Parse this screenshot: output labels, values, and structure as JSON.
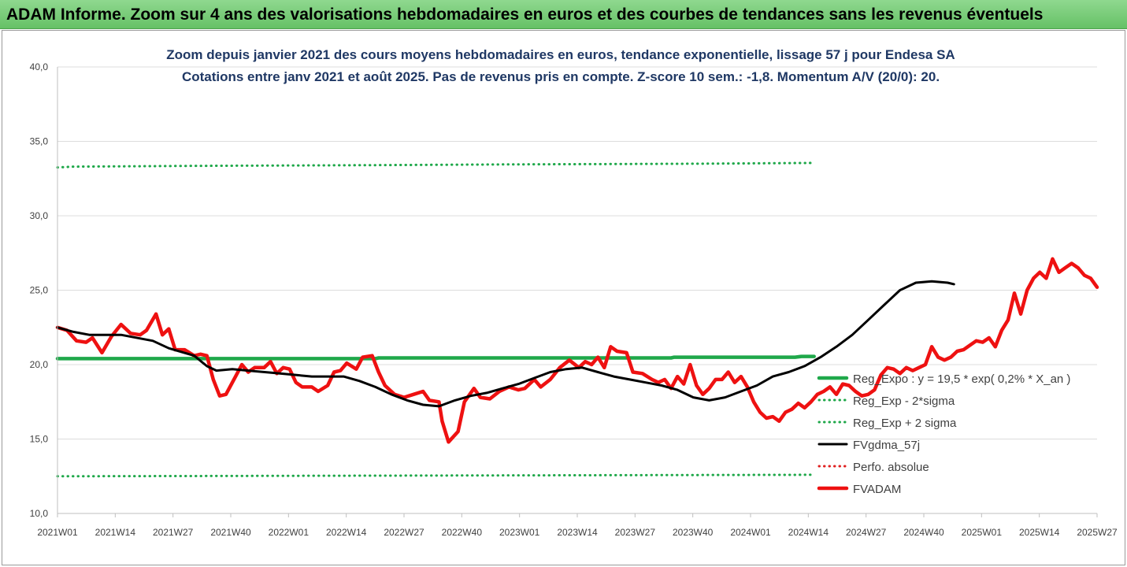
{
  "banner": {
    "title": "ADAM Informe. Zoom sur 4 ans des valorisations hebdomadaires en euros et des courbes de tendances sans les revenus éventuels"
  },
  "chart_data": {
    "type": "line",
    "title": "Zoom depuis janvier 2021 des cours moyens hebdomadaires en euros, tendance exponentielle, lissage 57 j pour Endesa SA",
    "subtitle": "Cotations entre janv 2021 et août 2025. Pas de revenus pris en compte. Z-score 10 sem.: -1,8. Momentum A/V (20/0): 20.",
    "ylim": [
      10,
      40
    ],
    "y_ticks": [
      "10,0",
      "15,0",
      "20,0",
      "25,0",
      "30,0",
      "35,0",
      "40,0"
    ],
    "x_ticks": [
      "2021W01",
      "2021W14",
      "2021W27",
      "2021W40",
      "2022W01",
      "2022W14",
      "2022W27",
      "2022W40",
      "2023W01",
      "2023W14",
      "2023W27",
      "2023W40",
      "2024W01",
      "2024W14",
      "2024W27",
      "2024W40",
      "2025W01",
      "2025W14",
      "2025W27"
    ],
    "x_range_weeks": [
      0,
      238
    ],
    "legend_position": "bottom-right",
    "series": [
      {
        "name": "Reg_Expo : y = 19,5 * exp( 0,2% *  X_an )",
        "color": "#1fa84a",
        "style": "solid-thick",
        "points": [
          [
            0,
            20.4
          ],
          [
            100,
            20.4
          ],
          [
            101,
            20.45
          ],
          [
            193,
            20.45
          ],
          [
            194,
            20.5
          ],
          [
            232,
            20.5
          ],
          [
            234,
            20.55
          ],
          [
            238,
            20.55
          ]
        ]
      },
      {
        "name": "Reg_Exp - 2*sigma",
        "color": "#1fa84a",
        "style": "dotted",
        "points": [
          [
            0,
            12.5
          ],
          [
            238,
            12.6
          ]
        ]
      },
      {
        "name": "Reg_Exp + 2 sigma",
        "color": "#1fa84a",
        "style": "dotted",
        "points": [
          [
            0,
            33.25
          ],
          [
            5,
            33.3
          ],
          [
            40,
            33.35
          ],
          [
            100,
            33.4
          ],
          [
            140,
            33.45
          ],
          [
            200,
            33.5
          ],
          [
            238,
            33.55
          ]
        ]
      },
      {
        "name": "FVgdma_57j",
        "color": "#000000",
        "style": "solid",
        "points": [
          [
            0,
            22.5
          ],
          [
            5,
            22.2
          ],
          [
            10,
            22.0
          ],
          [
            20,
            22.0
          ],
          [
            30,
            21.6
          ],
          [
            35,
            21.1
          ],
          [
            43,
            20.6
          ],
          [
            47,
            19.9
          ],
          [
            50,
            19.6
          ],
          [
            55,
            19.7
          ],
          [
            60,
            19.6
          ],
          [
            70,
            19.4
          ],
          [
            80,
            19.2
          ],
          [
            90,
            19.2
          ],
          [
            95,
            18.9
          ],
          [
            100,
            18.5
          ],
          [
            105,
            18.0
          ],
          [
            110,
            17.6
          ],
          [
            115,
            17.3
          ],
          [
            120,
            17.2
          ],
          [
            125,
            17.6
          ],
          [
            130,
            17.9
          ],
          [
            135,
            18.1
          ],
          [
            140,
            18.4
          ],
          [
            145,
            18.7
          ],
          [
            150,
            19.1
          ],
          [
            155,
            19.5
          ],
          [
            160,
            19.7
          ],
          [
            165,
            19.8
          ],
          [
            170,
            19.5
          ],
          [
            175,
            19.2
          ],
          [
            180,
            19.0
          ],
          [
            185,
            18.8
          ],
          [
            190,
            18.6
          ],
          [
            195,
            18.3
          ],
          [
            200,
            17.8
          ],
          [
            205,
            17.6
          ],
          [
            210,
            17.8
          ],
          [
            215,
            18.2
          ],
          [
            220,
            18.6
          ],
          [
            225,
            19.2
          ],
          [
            230,
            19.5
          ],
          [
            235,
            19.9
          ],
          [
            240,
            20.5
          ],
          [
            245,
            21.2
          ],
          [
            250,
            22.0
          ],
          [
            255,
            23.0
          ],
          [
            260,
            24.0
          ],
          [
            265,
            25.0
          ],
          [
            270,
            25.5
          ],
          [
            275,
            25.6
          ],
          [
            280,
            25.5
          ],
          [
            282,
            25.4
          ]
        ]
      },
      {
        "name": "Perfo. absolue",
        "color": "#e02020",
        "style": "dotted",
        "points": []
      },
      {
        "name": "FVADAM",
        "color": "#ee1111",
        "style": "solid-thick",
        "points": [
          [
            0,
            22.5
          ],
          [
            3,
            22.3
          ],
          [
            6,
            21.6
          ],
          [
            9,
            21.5
          ],
          [
            11,
            21.8
          ],
          [
            14,
            20.8
          ],
          [
            17,
            21.9
          ],
          [
            20,
            22.7
          ],
          [
            23,
            22.1
          ],
          [
            26,
            22.0
          ],
          [
            28,
            22.3
          ],
          [
            31,
            23.4
          ],
          [
            33,
            22.0
          ],
          [
            35,
            22.4
          ],
          [
            37,
            21.0
          ],
          [
            40,
            21.0
          ],
          [
            43,
            20.6
          ],
          [
            45,
            20.7
          ],
          [
            47,
            20.6
          ],
          [
            49,
            19.0
          ],
          [
            51,
            17.9
          ],
          [
            53,
            18.0
          ],
          [
            56,
            19.2
          ],
          [
            58,
            20.0
          ],
          [
            60,
            19.5
          ],
          [
            62,
            19.8
          ],
          [
            65,
            19.8
          ],
          [
            67,
            20.2
          ],
          [
            69,
            19.4
          ],
          [
            71,
            19.8
          ],
          [
            73,
            19.7
          ],
          [
            75,
            18.8
          ],
          [
            77,
            18.5
          ],
          [
            80,
            18.5
          ],
          [
            82,
            18.2
          ],
          [
            85,
            18.6
          ],
          [
            87,
            19.5
          ],
          [
            89,
            19.6
          ],
          [
            91,
            20.1
          ],
          [
            94,
            19.7
          ],
          [
            96,
            20.5
          ],
          [
            99,
            20.6
          ],
          [
            101,
            19.5
          ],
          [
            103,
            18.6
          ],
          [
            106,
            18.0
          ],
          [
            109,
            17.8
          ],
          [
            112,
            18.0
          ],
          [
            115,
            18.2
          ],
          [
            117,
            17.6
          ],
          [
            120,
            17.5
          ],
          [
            121,
            16.2
          ],
          [
            123,
            14.8
          ],
          [
            126,
            15.5
          ],
          [
            128,
            17.5
          ],
          [
            131,
            18.4
          ],
          [
            133,
            17.8
          ],
          [
            136,
            17.7
          ],
          [
            139,
            18.2
          ],
          [
            142,
            18.5
          ],
          [
            145,
            18.3
          ],
          [
            147,
            18.4
          ],
          [
            150,
            19.0
          ],
          [
            152,
            18.5
          ],
          [
            155,
            19.0
          ],
          [
            158,
            19.8
          ],
          [
            161,
            20.3
          ],
          [
            164,
            19.8
          ],
          [
            166,
            20.2
          ],
          [
            168,
            20.0
          ],
          [
            170,
            20.5
          ],
          [
            172,
            19.8
          ],
          [
            174,
            21.2
          ],
          [
            176,
            20.9
          ],
          [
            179,
            20.8
          ],
          [
            181,
            19.5
          ],
          [
            184,
            19.4
          ],
          [
            187,
            19.0
          ],
          [
            189,
            18.8
          ],
          [
            191,
            19.0
          ],
          [
            193,
            18.4
          ],
          [
            195,
            19.2
          ],
          [
            197,
            18.7
          ],
          [
            199,
            20.0
          ],
          [
            201,
            18.6
          ],
          [
            203,
            18.0
          ],
          [
            205,
            18.4
          ],
          [
            207,
            19.0
          ],
          [
            209,
            19.0
          ],
          [
            211,
            19.5
          ],
          [
            213,
            18.8
          ],
          [
            215,
            19.2
          ],
          [
            217,
            18.5
          ],
          [
            219,
            17.5
          ],
          [
            221,
            16.8
          ],
          [
            223,
            16.4
          ],
          [
            225,
            16.5
          ],
          [
            227,
            16.2
          ],
          [
            229,
            16.8
          ],
          [
            231,
            17.0
          ],
          [
            233,
            17.4
          ],
          [
            235,
            17.1
          ],
          [
            237,
            17.5
          ],
          [
            239,
            18.0
          ],
          [
            241,
            18.2
          ],
          [
            243,
            18.5
          ],
          [
            245,
            18.0
          ],
          [
            247,
            18.7
          ],
          [
            249,
            18.6
          ],
          [
            251,
            18.2
          ],
          [
            253,
            17.9
          ],
          [
            255,
            18.0
          ],
          [
            257,
            18.3
          ],
          [
            259,
            19.3
          ],
          [
            261,
            19.8
          ],
          [
            263,
            19.7
          ],
          [
            265,
            19.4
          ],
          [
            267,
            19.8
          ],
          [
            269,
            19.6
          ],
          [
            271,
            19.8
          ],
          [
            273,
            20.0
          ],
          [
            275,
            21.2
          ],
          [
            277,
            20.5
          ],
          [
            279,
            20.3
          ],
          [
            281,
            20.5
          ],
          [
            283,
            20.9
          ],
          [
            285,
            21.0
          ],
          [
            287,
            21.3
          ],
          [
            289,
            21.6
          ],
          [
            291,
            21.5
          ],
          [
            293,
            21.8
          ],
          [
            295,
            21.2
          ],
          [
            297,
            22.3
          ],
          [
            299,
            23.0
          ],
          [
            301,
            24.8
          ],
          [
            303,
            23.4
          ],
          [
            305,
            25.0
          ],
          [
            307,
            25.8
          ],
          [
            309,
            26.2
          ],
          [
            311,
            25.8
          ],
          [
            313,
            27.1
          ],
          [
            315,
            26.2
          ],
          [
            317,
            26.5
          ],
          [
            319,
            26.8
          ],
          [
            321,
            26.5
          ],
          [
            323,
            26.0
          ],
          [
            325,
            25.8
          ],
          [
            327,
            25.2
          ]
        ]
      }
    ],
    "legend": [
      {
        "label": "Reg_Expo : y = 19,5 * exp( 0,2% *  X_an )",
        "color": "#1fa84a",
        "style": "solid-thick"
      },
      {
        "label": "Reg_Exp - 2*sigma",
        "color": "#1fa84a",
        "style": "dotted"
      },
      {
        "label": "Reg_Exp + 2 sigma",
        "color": "#1fa84a",
        "style": "dotted"
      },
      {
        "label": "FVgdma_57j",
        "color": "#000000",
        "style": "solid"
      },
      {
        "label": "Perfo. absolue",
        "color": "#e02020",
        "style": "dotted"
      },
      {
        "label": "FVADAM",
        "color": "#ee1111",
        "style": "solid-thick"
      }
    ]
  }
}
